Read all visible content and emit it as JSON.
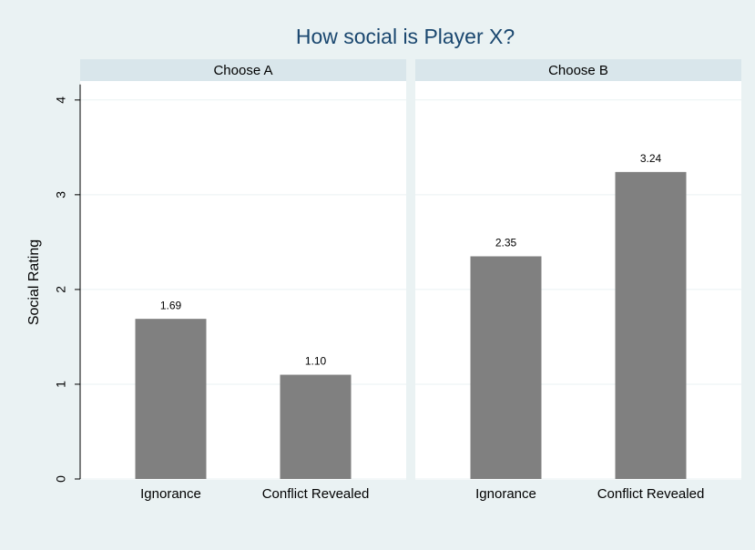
{
  "chart_data": {
    "type": "bar",
    "title": "How social is Player X?",
    "y_label": "Social Rating",
    "ylim": [
      0,
      4.2
    ],
    "yticks": [
      0,
      1,
      2,
      3,
      4
    ],
    "grid": true,
    "color": "#808080",
    "panels": [
      {
        "title": "Choose A",
        "categories": [
          "Ignorance",
          "Conflict Revealed"
        ],
        "values": [
          1.69,
          1.1
        ],
        "value_labels": [
          "1.69",
          "1.10"
        ]
      },
      {
        "title": "Choose B",
        "categories": [
          "Ignorance",
          "Conflict Revealed"
        ],
        "values": [
          2.35,
          3.24
        ],
        "value_labels": [
          "2.35",
          "3.24"
        ]
      }
    ]
  }
}
